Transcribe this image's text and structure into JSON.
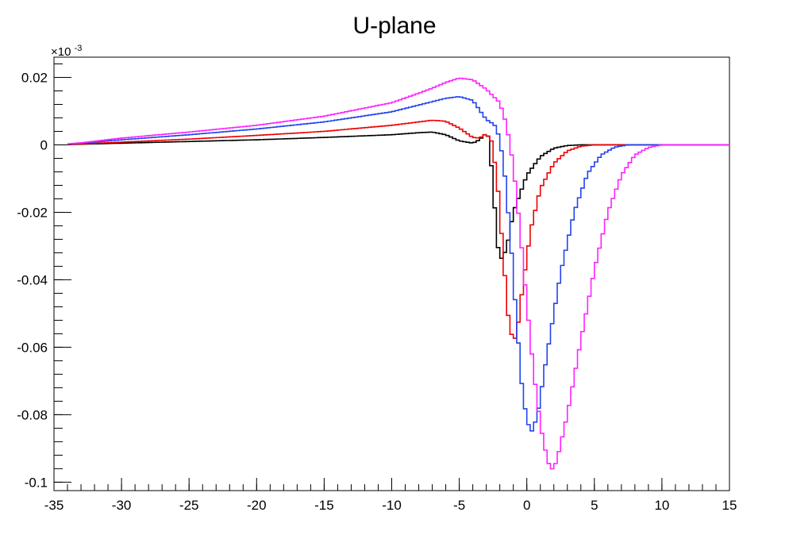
{
  "chart_data": {
    "type": "line",
    "title": "U-plane",
    "xlabel": "",
    "ylabel": "",
    "y_multiplier_label": "×10",
    "y_multiplier_exponent": "-3",
    "xlim": [
      -35,
      15
    ],
    "ylim": [
      -0.1025,
      0.026
    ],
    "x_ticks": [
      -35,
      -30,
      -25,
      -20,
      -15,
      -10,
      -5,
      0,
      5,
      10,
      15
    ],
    "y_ticks": [
      0.02,
      0,
      -0.02,
      -0.04,
      -0.06,
      -0.08,
      -0.1
    ],
    "x_tick_labels": [
      "-35",
      "-30",
      "-25",
      "-20",
      "-15",
      "-10",
      "-5",
      "0",
      "5",
      "10",
      "15"
    ],
    "y_tick_labels": [
      "0.02",
      "0",
      "-0.02",
      "-0.04",
      "-0.06",
      "-0.08",
      "-0.1"
    ],
    "legend": "none",
    "grid": false,
    "series": [
      {
        "color": "#000000",
        "points": [
          [
            -35,
            0
          ],
          [
            -33,
            0.0002
          ],
          [
            -30,
            0.0005
          ],
          [
            -25,
            0.001
          ],
          [
            -20,
            0.0015
          ],
          [
            -15,
            0.0022
          ],
          [
            -10,
            0.003
          ],
          [
            -8,
            0.0036
          ],
          [
            -7,
            0.0038
          ],
          [
            -6,
            0.003
          ],
          [
            -5,
            0.0012
          ],
          [
            -4,
            0.0005
          ],
          [
            -3.5,
            0.0015
          ],
          [
            -3,
            0.0035
          ],
          [
            -2.8,
            0.002
          ],
          [
            -2.5,
            -0.012
          ],
          [
            -2.2,
            -0.028
          ],
          [
            -2,
            -0.0345
          ],
          [
            -1.5,
            -0.031
          ],
          [
            -1,
            -0.02
          ],
          [
            0,
            -0.009
          ],
          [
            1,
            -0.0035
          ],
          [
            2,
            -0.001
          ],
          [
            3,
            -0.0002
          ],
          [
            4,
            0
          ],
          [
            15,
            0
          ]
        ]
      },
      {
        "color": "#ee0000",
        "points": [
          [
            -35,
            0
          ],
          [
            -33,
            0.0003
          ],
          [
            -30,
            0.0008
          ],
          [
            -25,
            0.0017
          ],
          [
            -20,
            0.0028
          ],
          [
            -15,
            0.004
          ],
          [
            -10,
            0.0058
          ],
          [
            -8,
            0.0068
          ],
          [
            -7,
            0.0073
          ],
          [
            -6,
            0.007
          ],
          [
            -5,
            0.005
          ],
          [
            -4,
            0.0022
          ],
          [
            -3.5,
            0.002
          ],
          [
            -3,
            0.0033
          ],
          [
            -2.6,
            0.001
          ],
          [
            -2.2,
            -0.01
          ],
          [
            -1.8,
            -0.03
          ],
          [
            -1.4,
            -0.05
          ],
          [
            -1,
            -0.059
          ],
          [
            -0.7,
            -0.055
          ],
          [
            -0.3,
            -0.042
          ],
          [
            0.3,
            -0.025
          ],
          [
            1,
            -0.013
          ],
          [
            2,
            -0.0055
          ],
          [
            3,
            -0.0018
          ],
          [
            4,
            -0.0004
          ],
          [
            5,
            0
          ],
          [
            15,
            0
          ]
        ]
      },
      {
        "color": "#2244ee",
        "points": [
          [
            -35,
            0
          ],
          [
            -33,
            0.0005
          ],
          [
            -30,
            0.0015
          ],
          [
            -25,
            0.003
          ],
          [
            -20,
            0.0047
          ],
          [
            -15,
            0.0068
          ],
          [
            -10,
            0.0098
          ],
          [
            -8,
            0.0118
          ],
          [
            -7,
            0.0128
          ],
          [
            -6,
            0.0138
          ],
          [
            -5,
            0.0143
          ],
          [
            -4,
            0.0132
          ],
          [
            -3,
            0.0075
          ],
          [
            -2.4,
            0.006
          ],
          [
            -2,
            0.002
          ],
          [
            -1.6,
            -0.01
          ],
          [
            -1.2,
            -0.028
          ],
          [
            -0.8,
            -0.05
          ],
          [
            -0.4,
            -0.07
          ],
          [
            0,
            -0.082
          ],
          [
            0.4,
            -0.085
          ],
          [
            0.8,
            -0.08
          ],
          [
            1.5,
            -0.062
          ],
          [
            2.5,
            -0.038
          ],
          [
            3.5,
            -0.02
          ],
          [
            4.5,
            -0.0085
          ],
          [
            5.5,
            -0.003
          ],
          [
            6.5,
            -0.0007
          ],
          [
            7.5,
            0
          ],
          [
            15,
            0
          ]
        ]
      },
      {
        "color": "#ff22ff",
        "points": [
          [
            -35,
            0
          ],
          [
            -33,
            0.0006
          ],
          [
            -30,
            0.002
          ],
          [
            -25,
            0.0038
          ],
          [
            -20,
            0.0058
          ],
          [
            -15,
            0.0085
          ],
          [
            -10,
            0.0125
          ],
          [
            -8,
            0.0153
          ],
          [
            -7,
            0.0168
          ],
          [
            -6,
            0.0185
          ],
          [
            -5,
            0.0198
          ],
          [
            -4,
            0.0193
          ],
          [
            -3,
            0.0165
          ],
          [
            -2,
            0.0125
          ],
          [
            -1.5,
            0.006
          ],
          [
            -1,
            -0.006
          ],
          [
            -0.5,
            -0.025
          ],
          [
            0,
            -0.047
          ],
          [
            0.5,
            -0.067
          ],
          [
            1,
            -0.083
          ],
          [
            1.5,
            -0.093
          ],
          [
            1.8,
            -0.0965
          ],
          [
            2.2,
            -0.094
          ],
          [
            3,
            -0.08
          ],
          [
            4,
            -0.058
          ],
          [
            5,
            -0.037
          ],
          [
            6,
            -0.02
          ],
          [
            7,
            -0.009
          ],
          [
            8,
            -0.003
          ],
          [
            9,
            -0.0008
          ],
          [
            10,
            0
          ],
          [
            15,
            0
          ]
        ]
      }
    ]
  }
}
